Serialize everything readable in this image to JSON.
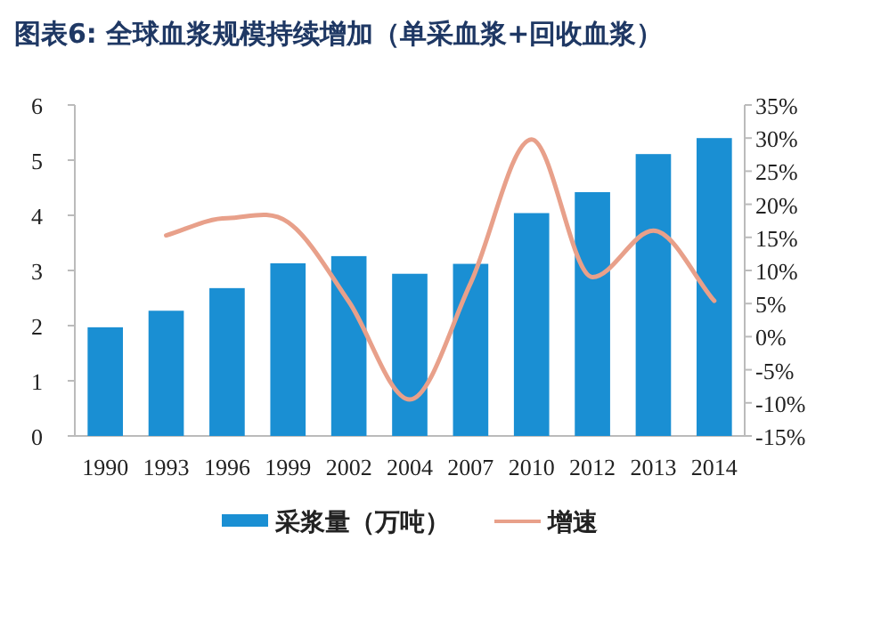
{
  "chart_data": {
    "type": "bar",
    "title": "图表6: 全球血浆规模持续增加（单采血浆+回收血浆）",
    "categories": [
      "1990",
      "1993",
      "1996",
      "1999",
      "2002",
      "2004",
      "2007",
      "2010",
      "2012",
      "2013",
      "2014"
    ],
    "series": [
      {
        "name": "采浆量（万吨）",
        "color": "#1a8fd3",
        "values": [
          1.97,
          2.27,
          2.68,
          3.13,
          3.26,
          2.94,
          3.12,
          4.04,
          4.42,
          5.11,
          5.4
        ]
      },
      {
        "name": "增速",
        "type": "line",
        "axis": "y2",
        "color": "#e8a08a",
        "values": [
          null,
          15.3,
          17.9,
          17.3,
          5.3,
          -9.5,
          8.1,
          29.8,
          9.0,
          16.0,
          5.4
        ]
      }
    ],
    "ylim": [
      0,
      6
    ],
    "yticks": [
      0,
      1,
      2,
      3,
      4,
      5,
      6
    ],
    "y2lim": [
      -15,
      35
    ],
    "y2ticks": [
      {
        "value": -15,
        "label": "-15%"
      },
      {
        "value": -10,
        "label": "-10%"
      },
      {
        "value": -5,
        "label": "-5%"
      },
      {
        "value": 0,
        "label": "0%"
      },
      {
        "value": 5,
        "label": "5%"
      },
      {
        "value": 10,
        "label": "10%"
      },
      {
        "value": 15,
        "label": "15%"
      },
      {
        "value": 20,
        "label": "20%"
      },
      {
        "value": 25,
        "label": "25%"
      },
      {
        "value": 30,
        "label": "30%"
      },
      {
        "value": 35,
        "label": "35%"
      }
    ],
    "grid": false,
    "legend": "bottom"
  }
}
